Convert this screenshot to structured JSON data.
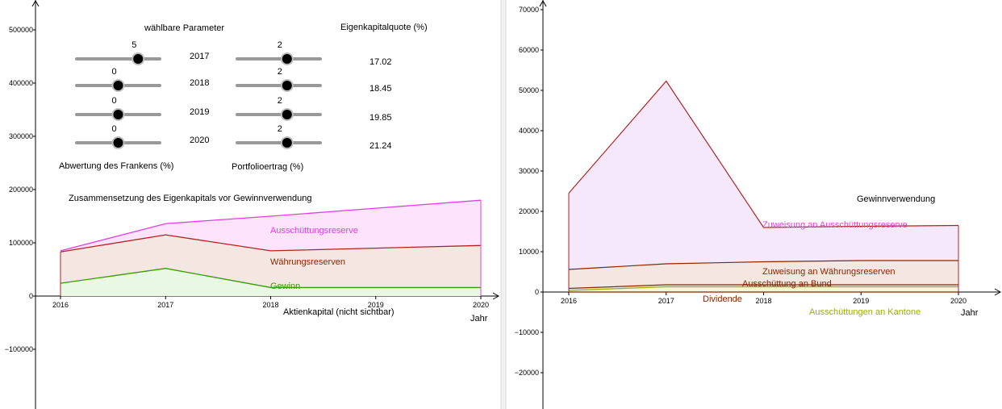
{
  "colors": {
    "magenta": "#e040e0",
    "red": "#b22222",
    "brown": "#8b2500",
    "green": "#3a9a00",
    "olive": "#9ab000",
    "slider_track": "#999999",
    "knob": "#000000",
    "divider": "#d8d8d8"
  },
  "left": {
    "params_title": "wählbare Parameter",
    "ek_title": "Eigenkapitalquote (%)",
    "years": [
      "2017",
      "2018",
      "2019",
      "2020"
    ],
    "franken_values": [
      "5",
      "0",
      "0",
      "0"
    ],
    "franken_fraction": [
      0.74,
      0.5,
      0.5,
      0.5
    ],
    "portfolio_values": [
      "2",
      "2",
      "2",
      "2"
    ],
    "portfolio_fraction": [
      0.6,
      0.6,
      0.6,
      0.6
    ],
    "ek_quote": [
      "17.02",
      "18.45",
      "19.85",
      "21.24"
    ],
    "franken_label": "Abwertung des Frankens (%)",
    "portfolio_label": "Portfolioertrag (%)",
    "chart_title": "Zusammensetzung des Eigenkapitals vor Gewinnverwendung",
    "x_axis_label": "Aktienkapital (nicht sichtbar)",
    "x_unit_label": "Jahr",
    "series_labels": {
      "reserve": "Ausschüttungsreserve",
      "currency": "Währungsreserven",
      "profit": "Gewinn"
    }
  },
  "right": {
    "title": "Gewinnverwendung",
    "x_unit_label": "Jahr",
    "series_labels": {
      "reserve": "Zuweisung an Ausschüttungsreserve",
      "currency": "Zuweisung an Währungsreserven",
      "bund": "Ausschüttung an Bund",
      "dividend": "Dividende",
      "kantone": "Ausschüttungen an Kantone"
    }
  },
  "chart_data": [
    {
      "type": "area",
      "title": "Zusammensetzung des Eigenkapitals vor Gewinnverwendung",
      "xlabel": "Jahr",
      "x": [
        2016,
        2017,
        2018,
        2019,
        2020
      ],
      "x_ticks": [
        "2016",
        "2017",
        "2018",
        "2019",
        "2020"
      ],
      "y_ticks": [
        "500000",
        "400000",
        "300000",
        "200000",
        "100000",
        "0",
        "−100000"
      ],
      "ylim": [
        -200000,
        560000
      ],
      "series": [
        {
          "name": "Gewinn",
          "values": [
            24000,
            52000,
            16000,
            16000,
            16000
          ]
        },
        {
          "name": "Währungsreserven",
          "values": [
            83000,
            115000,
            85000,
            90000,
            95000
          ]
        },
        {
          "name": "Ausschüttungsreserve",
          "values": [
            85000,
            136000,
            150000,
            165000,
            180000
          ]
        }
      ],
      "grid": false
    },
    {
      "type": "area",
      "title": "Gewinnverwendung",
      "xlabel": "Jahr",
      "x": [
        2016,
        2017,
        2018,
        2019,
        2020
      ],
      "x_ticks": [
        "2016",
        "2017",
        "2018",
        "2019",
        "2020"
      ],
      "y_ticks": [
        "70000",
        "60000",
        "50000",
        "40000",
        "30000",
        "20000",
        "10000",
        "0",
        "−10000",
        "−20000"
      ],
      "ylim": [
        -28000,
        71000
      ],
      "series": [
        {
          "name": "Dividende",
          "values": [
            0,
            0,
            0,
            0,
            0
          ]
        },
        {
          "name": "Ausschüttungen an Kantone",
          "values": [
            400,
            1300,
            1300,
            1300,
            1300
          ]
        },
        {
          "name": "Ausschüttung an Bund",
          "values": [
            900,
            1800,
            1800,
            1800,
            1800
          ]
        },
        {
          "name": "Zuweisung an Währungsreserven",
          "values": [
            5600,
            7000,
            7500,
            7800,
            7800
          ]
        },
        {
          "name": "Zuweisung an Ausschüttungsreserve",
          "values": [
            24500,
            52300,
            16000,
            16300,
            16500
          ]
        }
      ],
      "grid": false
    }
  ]
}
